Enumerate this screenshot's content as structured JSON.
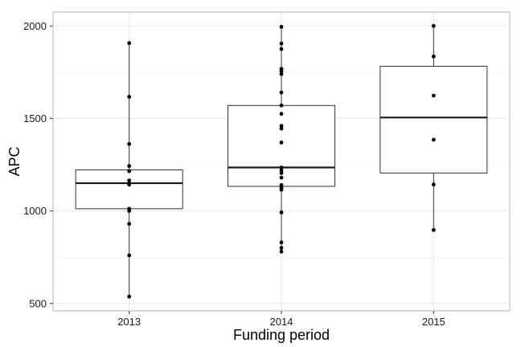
{
  "chart_data": {
    "type": "boxplot",
    "title": "",
    "xlabel": "Funding period",
    "ylabel": "APC",
    "ylim": [
      460,
      2075
    ],
    "yticks": [
      500,
      1000,
      1500,
      2000
    ],
    "grid": true,
    "categories": [
      "2013",
      "2014",
      "2015"
    ],
    "boxes": [
      {
        "name": "2013",
        "q1": 1012,
        "median": 1150,
        "q3": 1222,
        "whisker_low": 537,
        "whisker_high": 1907
      },
      {
        "name": "2014",
        "q1": 1133,
        "median": 1235,
        "q3": 1570,
        "whisker_low": 780,
        "whisker_high": 1995
      },
      {
        "name": "2015",
        "q1": 1205,
        "median": 1505,
        "q3": 1782,
        "whisker_low": 897,
        "whisker_high": 2000
      }
    ],
    "points": [
      {
        "category": "2013",
        "values": [
          1907,
          1617,
          1362,
          1243,
          1215,
          1165,
          1150,
          1142,
          1012,
          1000,
          930,
          760,
          537
        ]
      },
      {
        "category": "2014",
        "values": [
          1995,
          1905,
          1875,
          1768,
          1755,
          1740,
          1640,
          1570,
          1525,
          1460,
          1445,
          1370,
          1235,
          1220,
          1205,
          1180,
          1140,
          1125,
          1115,
          992,
          830,
          800,
          780
        ]
      },
      {
        "category": "2015",
        "values": [
          2000,
          1835,
          1623,
          1385,
          1143,
          897
        ]
      }
    ]
  }
}
